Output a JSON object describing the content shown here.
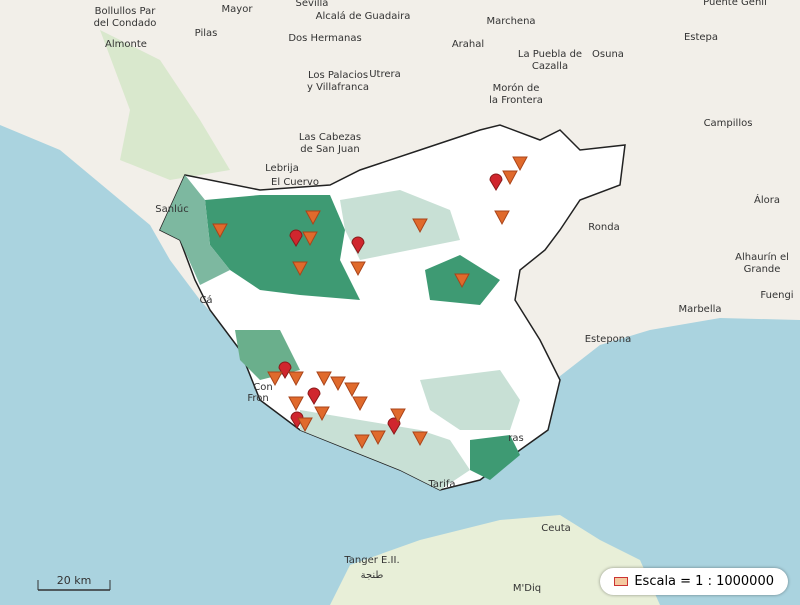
{
  "labels": [
    "Bollullos Par",
    "del Condado",
    "Mayor",
    "Sevilla",
    "Alcalá de Guadaira",
    "Marchena",
    "Puente Genil",
    "Almonte",
    "Pilas",
    "Dos Hermanas",
    "Arahal",
    "La Puebla de",
    "Cazalla",
    "Osuna",
    "Estepa",
    "Los Palacios",
    "y Villafranca",
    "Utrera",
    "Morón de",
    "la Frontera",
    "Campillos",
    "Las Cabezas",
    "de San Juan",
    "Lebrija",
    "El Cuervo",
    "Sanlúc",
    "Ronda",
    "Álora",
    "Alhaurín el",
    "Grande",
    "Marbella",
    "Fuengi",
    "Estepona",
    "Ceuta",
    "Tanger E.II.",
    "طنجة",
    "M'Diq",
    "Tarifa",
    "ras",
    "Con",
    "Fron",
    "Cá"
  ],
  "scale_bar": "20 km",
  "legend": "Escala = 1 : 1000000"
}
